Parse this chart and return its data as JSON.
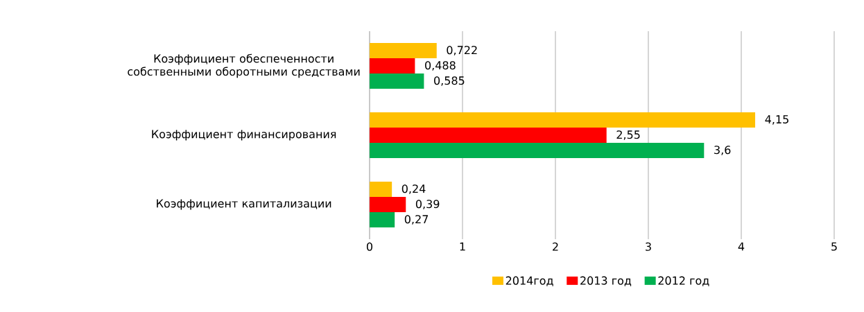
{
  "chart_data": {
    "type": "bar",
    "orientation": "horizontal",
    "categories": [
      "Коэффициент обеспеченности собственными оборотными средствами",
      "Коэффициент финансирования",
      "Коэффициент капитализации"
    ],
    "series": [
      {
        "name": "2014год",
        "color": "#ffc000",
        "values": [
          0.722,
          4.15,
          0.24
        ],
        "value_labels": [
          "0,722",
          "4,15",
          "0,24"
        ]
      },
      {
        "name": "2013 год",
        "color": "#ff0000",
        "values": [
          0.488,
          2.55,
          0.39
        ],
        "value_labels": [
          "0,488",
          "2,55",
          "0,39"
        ]
      },
      {
        "name": "2012 год",
        "color": "#00b050",
        "values": [
          0.585,
          3.6,
          0.27
        ],
        "value_labels": [
          "0,585",
          "3,6",
          "0,27"
        ]
      }
    ],
    "xlim": [
      0,
      5
    ],
    "xticks": [
      0,
      1,
      2,
      3,
      4,
      5
    ],
    "grid": "x",
    "legend": "bottom"
  }
}
